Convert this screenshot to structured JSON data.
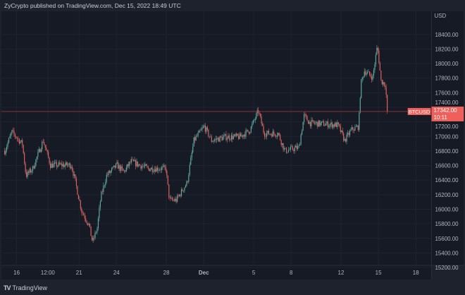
{
  "header": {
    "attribution": "ZyCrypto published on TradingView.com, Dec 15, 2022 18:49 UTC"
  },
  "footer": {
    "brand": "TradingView",
    "logo_icon": "tradingview-logo-icon"
  },
  "colors": {
    "background": "#161a25",
    "up": "#5fa89f",
    "down": "#d9645f",
    "price_line": "#b23a3a",
    "label_bg": "#f0605a"
  },
  "chart_data": {
    "type": "candlestick",
    "symbol": "BTCUSD",
    "currency": "USD",
    "last_price": "17342.00",
    "countdown": "10:11",
    "ylim": [
      15200,
      18400
    ],
    "y_ticks": [
      "18400.00",
      "18200.00",
      "18000.00",
      "17800.00",
      "17600.00",
      "17400.00",
      "17200.00",
      "17000.00",
      "16800.00",
      "16600.00",
      "16400.00",
      "16200.00",
      "16000.00",
      "15800.00",
      "15600.00",
      "15400.00",
      "15200.00"
    ],
    "x_ticks": [
      {
        "label": "16",
        "date": "2022-11-16T00:00"
      },
      {
        "label": "12:00",
        "date": "2022-11-18T12:00"
      },
      {
        "label": "21",
        "date": "2022-11-21T00:00"
      },
      {
        "label": "24",
        "date": "2022-11-24T00:00"
      },
      {
        "label": "28",
        "date": "2022-11-28T00:00"
      },
      {
        "label": "Dec",
        "date": "2022-12-01T00:00",
        "bold": true
      },
      {
        "label": "5",
        "date": "2022-12-05T00:00"
      },
      {
        "label": "8",
        "date": "2022-12-08T00:00"
      },
      {
        "label": "12",
        "date": "2022-12-12T00:00"
      },
      {
        "label": "15",
        "date": "2022-12-15T00:00"
      },
      {
        "label": "18",
        "date": "2022-12-18T00:00"
      }
    ],
    "grid": true,
    "approx_closes": [
      [
        "2022-11-15T01:00",
        16800
      ],
      [
        "2022-11-15T15:00",
        17060
      ],
      [
        "2022-11-16T11:00",
        16896
      ],
      [
        "2022-11-16T18:00",
        16462
      ],
      [
        "2022-11-17T07:00",
        16559
      ],
      [
        "2022-11-18T03:00",
        16944
      ],
      [
        "2022-11-18T17:00",
        16607
      ],
      [
        "2022-11-20T09:00",
        16607
      ],
      [
        "2022-11-20T16:00",
        16414
      ],
      [
        "2022-11-20T23:00",
        16173
      ],
      [
        "2022-11-21T05:00",
        15980
      ],
      [
        "2022-11-21T19:00",
        15788
      ],
      [
        "2022-11-22T02:00",
        15547
      ],
      [
        "2022-11-22T11:00",
        15739
      ],
      [
        "2022-11-22T18:00",
        16173
      ],
      [
        "2022-11-23T05:00",
        16462
      ],
      [
        "2022-11-24T01:00",
        16607
      ],
      [
        "2022-11-24T14:00",
        16511
      ],
      [
        "2022-11-25T04:00",
        16655
      ],
      [
        "2022-11-26T13:00",
        16559
      ],
      [
        "2022-11-27T23:00",
        16559
      ],
      [
        "2022-11-28T06:00",
        16125
      ],
      [
        "2022-11-28T19:00",
        16125
      ],
      [
        "2022-11-29T16:00",
        16366
      ],
      [
        "2022-11-30T05:00",
        16944
      ],
      [
        "2022-12-01T01:00",
        17137
      ],
      [
        "2022-12-01T15:00",
        16944
      ],
      [
        "2022-12-02T18:00",
        16993
      ],
      [
        "2022-12-03T21:00",
        16993
      ],
      [
        "2022-12-04T17:00",
        17089
      ],
      [
        "2022-12-05T09:00",
        17349
      ],
      [
        "2022-12-05T20:00",
        17041
      ],
      [
        "2022-12-06T23:00",
        17041
      ],
      [
        "2022-12-07T12:00",
        16800
      ],
      [
        "2022-12-08T15:00",
        16850
      ],
      [
        "2022-12-09T01:00",
        17282
      ],
      [
        "2022-12-09T12:00",
        17185
      ],
      [
        "2022-12-11T18:00",
        17156
      ],
      [
        "2022-12-12T07:00",
        16944
      ],
      [
        "2022-12-12T20:00",
        17089
      ],
      [
        "2022-12-13T10:00",
        17137
      ],
      [
        "2022-12-13T14:00",
        17716
      ],
      [
        "2022-12-13T21:00",
        17900
      ],
      [
        "2022-12-14T13:00",
        17812
      ],
      [
        "2022-12-14T22:00",
        18246
      ],
      [
        "2022-12-15T05:00",
        17764
      ],
      [
        "2022-12-15T13:00",
        17716
      ],
      [
        "2022-12-15T18:00",
        17342
      ]
    ]
  }
}
